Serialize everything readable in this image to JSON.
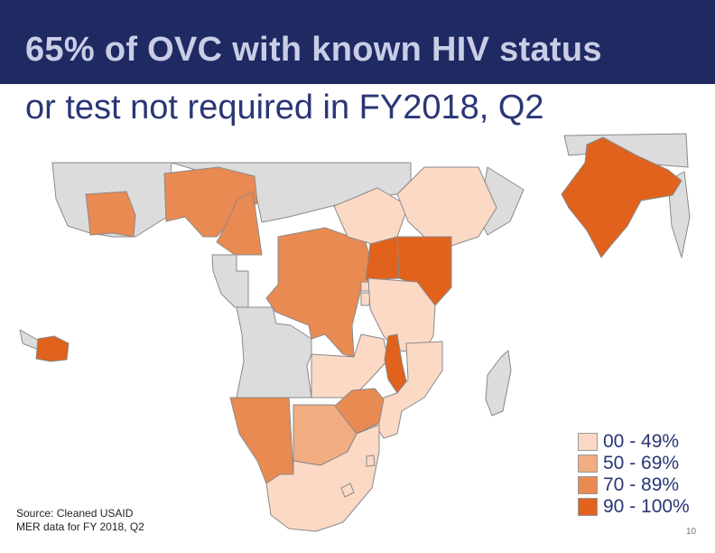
{
  "slide": {
    "title_line1": "65% of OVC with known HIV status",
    "title_line2": "or test not required in FY2018, Q2",
    "source_line1": "Source: Cleaned USAID",
    "source_line2": "MER data for FY 2018, Q2",
    "page_number": "10"
  },
  "legend": [
    {
      "label": "00 - 49%",
      "color": "#fbd9c5"
    },
    {
      "label": "50 - 69%",
      "color": "#f1ac82"
    },
    {
      "label": "70 - 89%",
      "color": "#e98a52"
    },
    {
      "label": "90 - 100%",
      "color": "#e0621d"
    }
  ],
  "colors": {
    "title_bar": "#1f2a63",
    "land_gray": "#dcdcdc",
    "band_00_49": "#fbd9c5",
    "band_50_69": "#f1ac82",
    "band_70_89": "#e98a52",
    "band_90_100": "#e0621d"
  },
  "regions": [
    {
      "name": "Haiti",
      "band": "90 - 100%"
    },
    {
      "name": "Cote d'Ivoire",
      "band": "70 - 89%"
    },
    {
      "name": "Nigeria",
      "band": "70 - 89%"
    },
    {
      "name": "Cameroon",
      "band": "70 - 89%"
    },
    {
      "name": "DR Congo",
      "band": "70 - 89%"
    },
    {
      "name": "South Sudan",
      "band": "00 - 49%"
    },
    {
      "name": "Ethiopia",
      "band": "00 - 49%"
    },
    {
      "name": "Uganda",
      "band": "90 - 100%"
    },
    {
      "name": "Kenya",
      "band": "90 - 100%"
    },
    {
      "name": "Rwanda",
      "band": "00 - 49%"
    },
    {
      "name": "Burundi",
      "band": "00 - 49%"
    },
    {
      "name": "Tanzania",
      "band": "00 - 49%"
    },
    {
      "name": "Zambia",
      "band": "00 - 49%"
    },
    {
      "name": "Malawi",
      "band": "90 - 100%"
    },
    {
      "name": "Mozambique",
      "band": "00 - 49%"
    },
    {
      "name": "Zimbabwe",
      "band": "70 - 89%"
    },
    {
      "name": "Namibia",
      "band": "70 - 89%"
    },
    {
      "name": "Botswana",
      "band": "50 - 69%"
    },
    {
      "name": "South Africa",
      "band": "00 - 49%"
    },
    {
      "name": "Lesotho",
      "band": "00 - 49%"
    },
    {
      "name": "Eswatini",
      "band": "00 - 49%"
    },
    {
      "name": "India",
      "band": "90 - 100%"
    }
  ]
}
